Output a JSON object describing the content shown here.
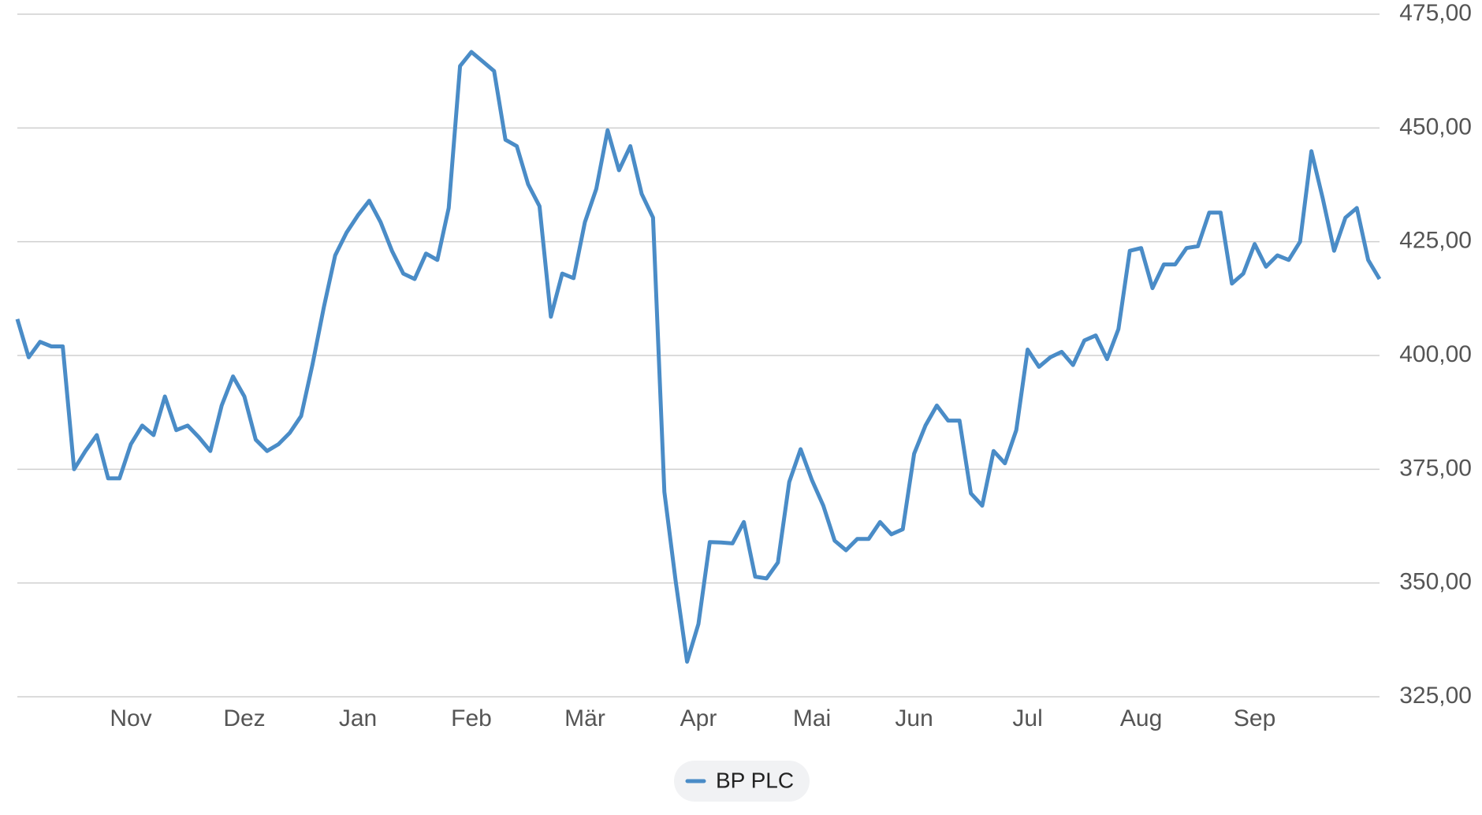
{
  "chart_data": {
    "type": "line",
    "categories": [
      null,
      null,
      null,
      null,
      null,
      null,
      null,
      null,
      null,
      null,
      "Nov",
      null,
      null,
      null,
      null,
      null,
      null,
      null,
      null,
      null,
      "Dez",
      null,
      null,
      null,
      null,
      null,
      null,
      null,
      null,
      null,
      "Jan",
      null,
      null,
      null,
      null,
      null,
      null,
      null,
      null,
      null,
      "Feb",
      null,
      null,
      null,
      null,
      null,
      null,
      null,
      null,
      null,
      "Mär",
      null,
      null,
      null,
      null,
      null,
      null,
      null,
      null,
      null,
      "Apr",
      null,
      null,
      null,
      null,
      null,
      null,
      null,
      null,
      null,
      "Mai",
      null,
      null,
      null,
      null,
      null,
      null,
      null,
      null,
      "Jun",
      null,
      null,
      null,
      null,
      null,
      null,
      null,
      null,
      null,
      "Jul",
      null,
      null,
      null,
      null,
      null,
      null,
      null,
      null,
      null,
      "Aug",
      null,
      null,
      null,
      null,
      null,
      null,
      null,
      null,
      null,
      "Sep",
      null,
      null,
      null,
      null,
      null,
      null,
      null,
      null,
      null,
      null,
      null
    ],
    "series": [
      {
        "name": "BP PLC",
        "color": "#4a8cc7",
        "values": [
          408,
          399.6,
          403,
          402,
          402,
          375,
          379,
          382.5,
          373,
          373,
          380.5,
          384.6,
          382.5,
          391,
          383.6,
          384.6,
          382,
          379,
          389,
          395.4,
          391,
          381.5,
          379,
          380.5,
          383,
          386.7,
          398,
          410.6,
          422,
          427,
          430.8,
          434,
          429.3,
          423,
          418,
          416.8,
          422.4,
          421,
          432.4,
          463.6,
          466.7,
          464.6,
          462.5,
          447.4,
          446,
          437.6,
          432.8,
          408.5,
          418,
          417,
          429.3,
          436.6,
          449.5,
          440.7,
          446,
          435.5,
          430.3,
          370,
          350.3,
          332.7,
          341,
          359,
          358.9,
          358.7,
          363.4,
          351.4,
          351,
          354.5,
          372.2,
          379.4,
          372.6,
          367,
          359.3,
          357.2,
          359.7,
          359.7,
          363.4,
          360.7,
          361.8,
          378.4,
          384.6,
          389,
          385.7,
          385.7,
          369.7,
          367,
          379,
          376.3,
          383.6,
          401.3,
          397.5,
          399.6,
          400.8,
          397.9,
          403.3,
          404.4,
          399.2,
          405.8,
          423,
          423.6,
          414.8,
          420,
          420,
          423.6,
          424,
          431.4,
          431.4,
          415.8,
          418,
          424.5,
          419.5,
          422,
          421,
          425,
          444.9,
          434.5,
          423,
          430.3,
          432.4,
          421,
          416.8
        ]
      }
    ],
    "ylim": [
      325,
      475
    ],
    "yticks": [
      {
        "value": 325,
        "label": "325,00"
      },
      {
        "value": 350,
        "label": "350,00"
      },
      {
        "value": 375,
        "label": "375,00"
      },
      {
        "value": 400,
        "label": "400,00"
      },
      {
        "value": 425,
        "label": "425,00"
      },
      {
        "value": 450,
        "label": "450,00"
      },
      {
        "value": 475,
        "label": "475,00"
      }
    ],
    "grid": true
  }
}
